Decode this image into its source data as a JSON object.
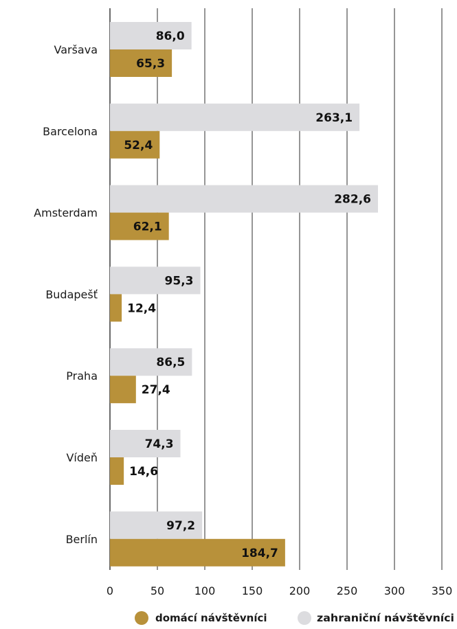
{
  "chart_data": {
    "type": "bar",
    "orientation": "horizontal",
    "categories": [
      "Varšava",
      "Barcelona",
      "Amsterdam",
      "Budapešť",
      "Praha",
      "Vídeň",
      "Berlín"
    ],
    "series": [
      {
        "name": "zahraniční návštěvníci",
        "values": [
          86.0,
          263.1,
          282.6,
          95.3,
          86.5,
          74.3,
          97.2
        ],
        "labels": [
          "86,0",
          "263,1",
          "282,6",
          "95,3",
          "86,5",
          "74,3",
          "97,2"
        ],
        "color": "#dcdcdf"
      },
      {
        "name": "domácí návštěvníci",
        "values": [
          65.3,
          52.4,
          62.1,
          12.4,
          27.4,
          14.6,
          184.7
        ],
        "labels": [
          "65,3",
          "52,4",
          "62,1",
          "12,4",
          "27,4",
          "14,6",
          "184,7"
        ],
        "color": "#b8913a"
      }
    ],
    "xlim": [
      0,
      350
    ],
    "xticks": [
      0,
      50,
      100,
      150,
      200,
      250,
      300,
      350
    ],
    "xtick_labels": [
      "0",
      "50",
      "100",
      "150",
      "200",
      "250",
      "300",
      "350"
    ],
    "grid": true,
    "legend_position": "bottom",
    "title": "",
    "xlabel": "",
    "ylabel": ""
  },
  "colors": {
    "domestic": "#b8913a",
    "foreign": "#dcdcdf",
    "grid": "#2b2b2b",
    "text": "#1a1a1a"
  }
}
